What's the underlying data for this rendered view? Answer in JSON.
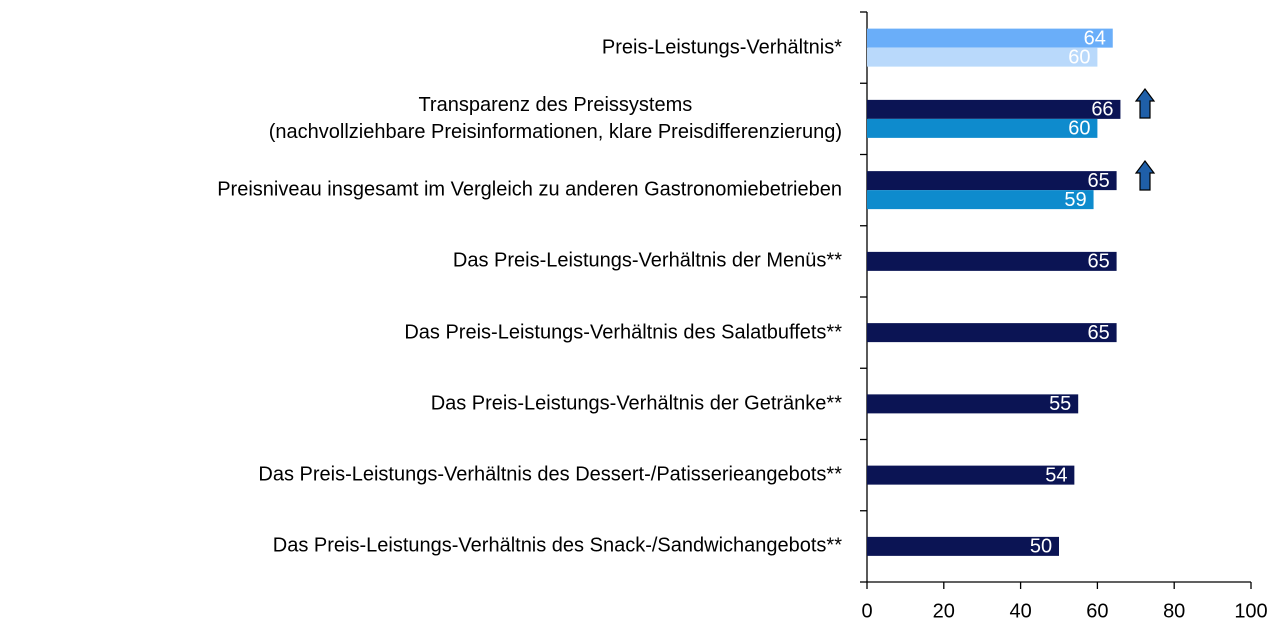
{
  "chart_data": {
    "type": "hbar",
    "categories": [
      "Preis-Leistungs-Verhältnis*",
      "Transparenz des Preissystems\n(nachvollziehbare Preisinformationen, klare Preisdifferenzierung)",
      "Preisniveau insgesamt im Vergleich zu anderen Gastronomiebetrieben",
      "Das Preis-Leistungs-Verhältnis der Menüs**",
      "Das Preis-Leistungs-Verhältnis des Salatbuffets**",
      "Das Preis-Leistungs-Verhältnis der Getränke**",
      "Das Preis-Leistungs-Verhältnis des Dessert-/Patisserieangebots**",
      "Das Preis-Leistungs-Verhältnis des Snack-/Sandwichangebots**"
    ],
    "series": [
      {
        "colors": [
          "#6aaef9",
          "#0b1454",
          "#0b1454",
          "#0b1454",
          "#0b1454",
          "#0b1454",
          "#0b1454",
          "#0b1454"
        ],
        "values": [
          64,
          66,
          65,
          65,
          65,
          55,
          54,
          50
        ]
      },
      {
        "colors": [
          "#b9d9fb",
          "#0e8bcd",
          "#0e8bcd",
          null,
          null,
          null,
          null,
          null
        ],
        "values": [
          60,
          60,
          59,
          null,
          null,
          null,
          null,
          null
        ]
      }
    ],
    "xlim": [
      0,
      100
    ],
    "xticks": [
      0,
      20,
      40,
      60,
      80,
      100
    ]
  }
}
